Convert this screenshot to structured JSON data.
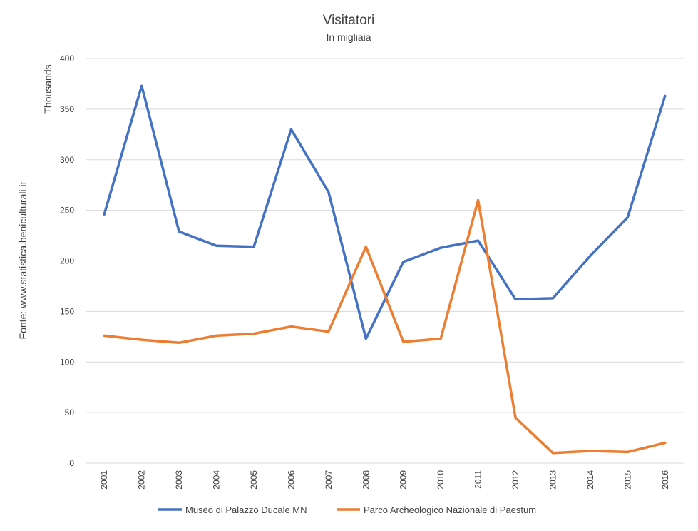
{
  "chart_data": {
    "type": "line",
    "title": "Visitatori",
    "subtitle": "In migliaia",
    "ylabel": "Thousands",
    "source_note": "Fonte: www.statistica.beniculturali.it",
    "ylim": [
      0,
      400
    ],
    "yticks": [
      0,
      50,
      100,
      150,
      200,
      250,
      300,
      350,
      400
    ],
    "grid": true,
    "legend_position": "bottom",
    "x": [
      "2001",
      "2002",
      "2003",
      "2004",
      "2005",
      "2006",
      "2007",
      "2008",
      "2009",
      "2010",
      "2011",
      "2012",
      "2013",
      "2014",
      "2015",
      "2016"
    ],
    "series": [
      {
        "name": "Museo di Palazzo Ducale MN",
        "color": "#4472c4",
        "values": [
          246,
          373,
          229,
          215,
          214,
          330,
          268,
          123,
          199,
          213,
          220,
          162,
          163,
          205,
          243,
          363
        ]
      },
      {
        "name": "Parco Archeologico Nazionale di Paestum",
        "color": "#ed7d31",
        "values": [
          126,
          122,
          119,
          126,
          128,
          135,
          130,
          214,
          120,
          123,
          260,
          45,
          10,
          12,
          11,
          20
        ]
      }
    ]
  }
}
